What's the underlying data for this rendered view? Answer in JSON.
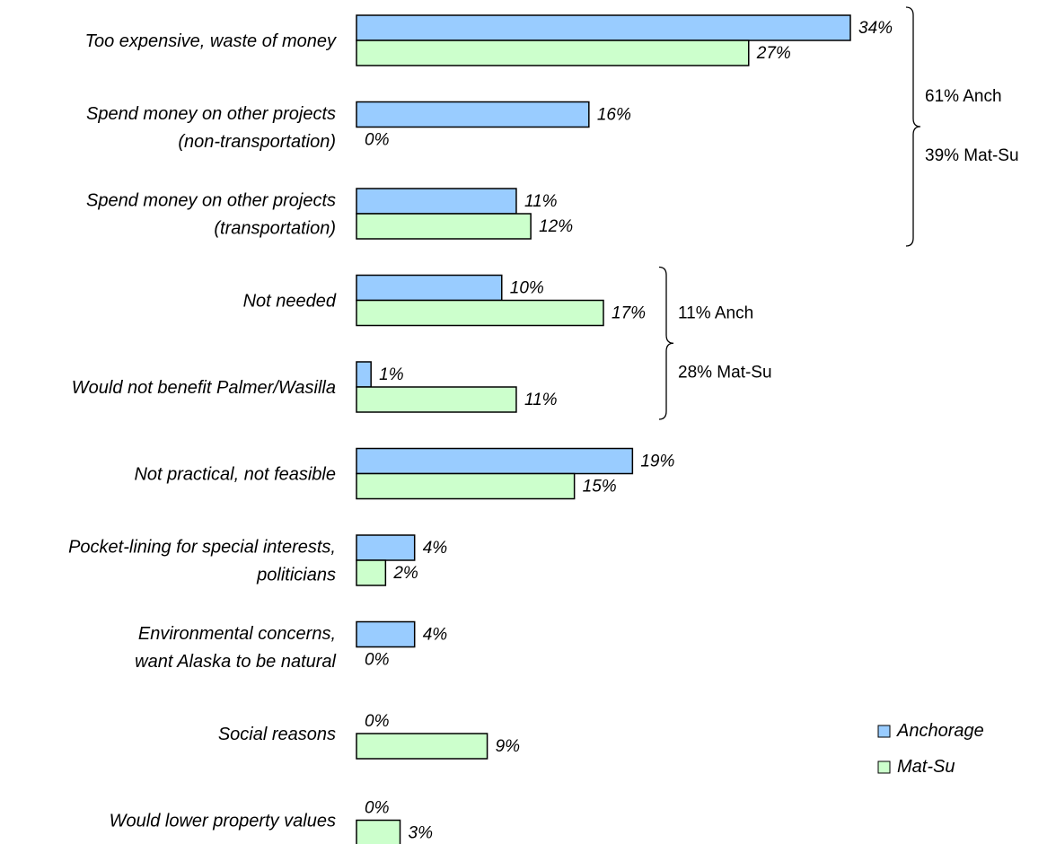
{
  "chart_data": {
    "type": "bar",
    "orientation": "horizontal",
    "value_format": "{v}%",
    "categories": [
      [
        "Too expensive, waste of money"
      ],
      [
        "Spend money on other projects",
        "(non-transportation)"
      ],
      [
        "Spend money on other projects",
        "(transportation)"
      ],
      [
        "Not needed"
      ],
      [
        "Would not benefit Palmer/Wasilla"
      ],
      [
        "Not practical, not feasible"
      ],
      [
        "Pocket-lining for special interests,",
        "politicians"
      ],
      [
        "Environmental concerns,",
        "want Alaska to be natural"
      ],
      [
        "Social reasons"
      ],
      [
        "Would lower property values"
      ]
    ],
    "series": [
      {
        "name": "Anchorage",
        "color": "#99CCFF",
        "values": [
          34,
          16,
          11,
          10,
          1,
          19,
          4,
          4,
          0,
          0
        ]
      },
      {
        "name": "Mat-Su",
        "color": "#CCFFCC",
        "values": [
          27,
          0,
          12,
          17,
          11,
          15,
          2,
          0,
          9,
          3
        ]
      }
    ],
    "xlim": [
      0,
      34
    ],
    "grid": false,
    "legend": "bottom-right",
    "brace_groups": [
      {
        "from_category": 0,
        "to_category": 2,
        "labels": [
          "61% Anch",
          "39% Mat-Su"
        ]
      },
      {
        "from_category": 3,
        "to_category": 4,
        "labels": [
          "11% Anch",
          "28% Mat-Su"
        ]
      }
    ]
  }
}
